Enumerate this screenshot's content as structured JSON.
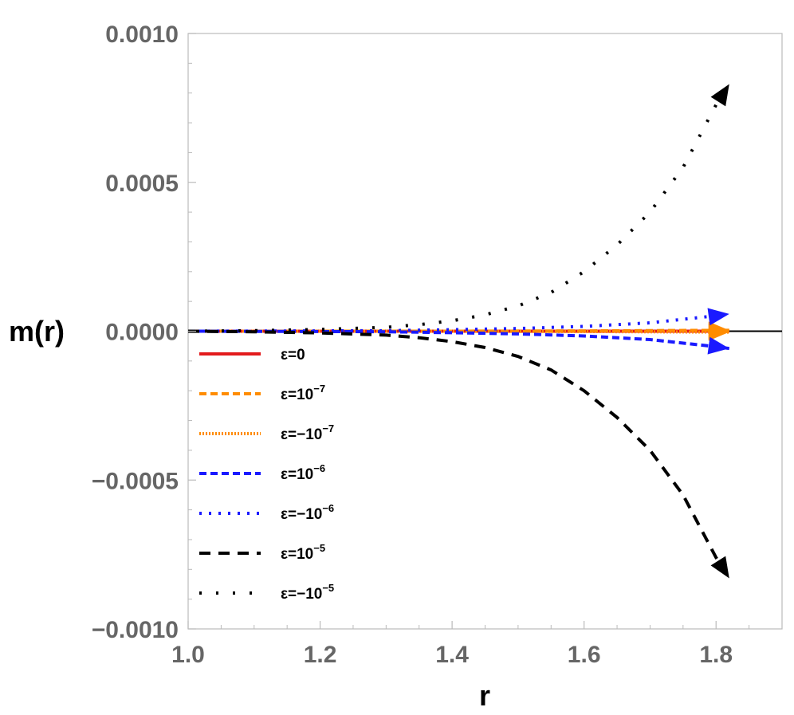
{
  "chart_data": {
    "type": "line",
    "xlabel": "r",
    "ylabel": "m(r)",
    "xlim": [
      1.0,
      1.9
    ],
    "ylim": [
      -0.001,
      0.001
    ],
    "x_ticks": [
      "1.0",
      "1.2",
      "1.4",
      "1.6",
      "1.8"
    ],
    "y_ticks": [
      "0.0010",
      "0.0005",
      "0.0000",
      "−0.0005",
      "−0.0010"
    ],
    "legend_position": "bottom-left",
    "grid": false,
    "series": [
      {
        "name": "ε=0",
        "label_base": "ε=0",
        "label_exp": "",
        "color": "#e31a1c",
        "style": "solid",
        "x": [
          1.0,
          1.2,
          1.4,
          1.6,
          1.8,
          1.82
        ],
        "y": [
          0,
          0,
          0,
          0,
          0,
          0
        ]
      },
      {
        "name": "ε=10⁻⁷",
        "label_base": "ε=10",
        "label_exp": "−7",
        "color": "#ff8c00",
        "style": "dashed",
        "x": [
          1.0,
          1.2,
          1.4,
          1.6,
          1.8,
          1.82
        ],
        "y": [
          0,
          0,
          0,
          1e-06,
          3e-06,
          3e-06
        ]
      },
      {
        "name": "ε=−10⁻⁷",
        "label_base": "ε=−10",
        "label_exp": "−7",
        "color": "#ff8c00",
        "style": "dotted",
        "x": [
          1.0,
          1.2,
          1.4,
          1.6,
          1.8,
          1.82
        ],
        "y": [
          0,
          0,
          0,
          -1e-06,
          -3e-06,
          -3e-06
        ]
      },
      {
        "name": "ε=10⁻⁶",
        "label_base": "ε=10",
        "label_exp": "−6",
        "color": "#1a1aff",
        "style": "dashed",
        "x": [
          1.0,
          1.2,
          1.3,
          1.4,
          1.5,
          1.6,
          1.7,
          1.8,
          1.82
        ],
        "y": [
          0,
          -1e-06,
          -2e-06,
          -5e-06,
          -9e-06,
          -1.6e-05,
          -2.8e-05,
          -5.2e-05,
          -5.8e-05
        ]
      },
      {
        "name": "ε=−10⁻⁶",
        "label_base": "ε=−10",
        "label_exp": "−6",
        "color": "#1a1aff",
        "style": "dotted",
        "x": [
          1.0,
          1.2,
          1.3,
          1.4,
          1.5,
          1.6,
          1.7,
          1.8,
          1.82
        ],
        "y": [
          0,
          1e-06,
          2e-06,
          5e-06,
          9e-06,
          1.6e-05,
          2.8e-05,
          5.2e-05,
          5.8e-05
        ]
      },
      {
        "name": "ε=10⁻⁵",
        "label_base": "ε=10",
        "label_exp": "−5",
        "color": "#000000",
        "style": "dashed",
        "x": [
          1.0,
          1.1,
          1.2,
          1.3,
          1.35,
          1.4,
          1.45,
          1.5,
          1.55,
          1.6,
          1.65,
          1.7,
          1.75,
          1.8,
          1.82
        ],
        "y": [
          0,
          -2e-06,
          -6e-06,
          -1.3e-05,
          -2.2e-05,
          -3.5e-05,
          -5.5e-05,
          -8.5e-05,
          -0.00013,
          -0.0002,
          -0.00029,
          -0.0004,
          -0.00055,
          -0.00076,
          -0.00083
        ]
      },
      {
        "name": "ε=−10⁻⁵",
        "label_base": "ε=−10",
        "label_exp": "−5",
        "color": "#000000",
        "style": "dotted",
        "x": [
          1.0,
          1.1,
          1.2,
          1.3,
          1.35,
          1.4,
          1.45,
          1.5,
          1.55,
          1.6,
          1.65,
          1.7,
          1.75,
          1.8,
          1.82
        ],
        "y": [
          0,
          2e-06,
          6e-06,
          1.3e-05,
          2.2e-05,
          3.5e-05,
          5.5e-05,
          8.5e-05,
          0.00013,
          0.0002,
          0.00029,
          0.0004,
          0.00055,
          0.00076,
          0.00083
        ]
      }
    ]
  }
}
